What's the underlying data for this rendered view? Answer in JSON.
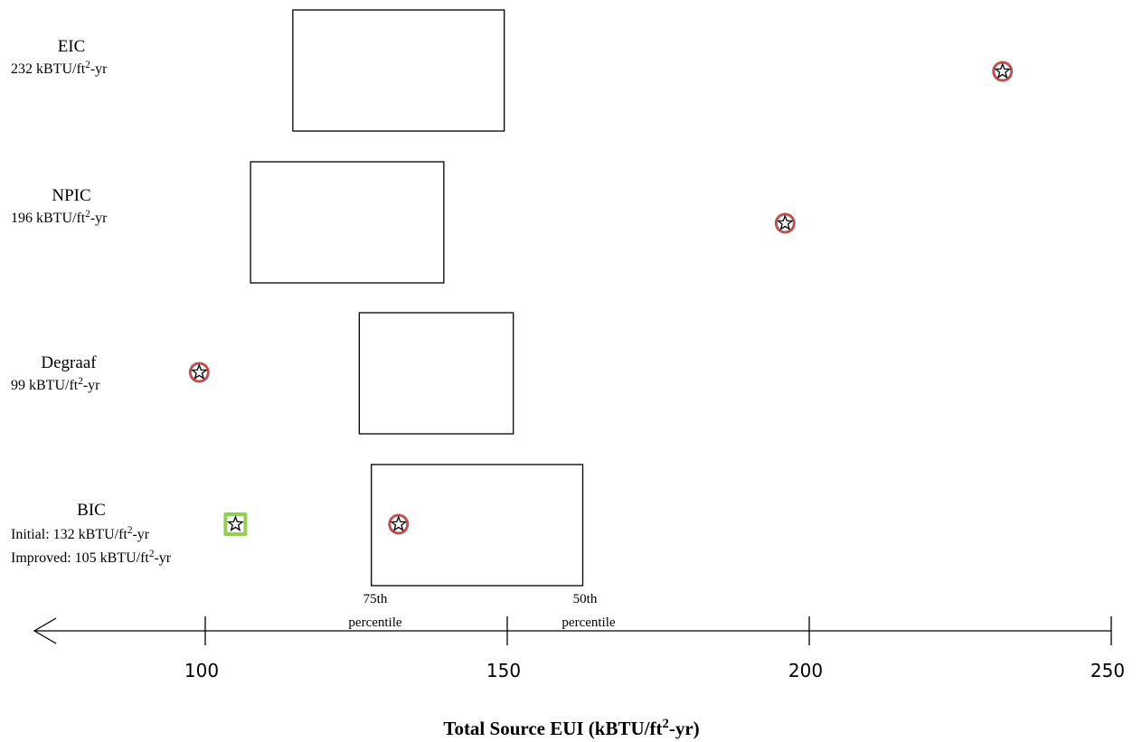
{
  "chart_data": {
    "type": "scatter",
    "xlabel": "Total Source EUI (kBTU/ft²-yr)",
    "xlim": [
      70,
      250
    ],
    "x_ticks": [
      100,
      150,
      200,
      250
    ],
    "axis_reversed_arrow": "left",
    "percentile_labels": {
      "p75": [
        "75th",
        "percentile"
      ],
      "p50": [
        "50th",
        "percentile"
      ]
    },
    "buildings": [
      {
        "name": "EIC",
        "eui_label": "232 kBTU/ft²-yr",
        "value": 232,
        "range": [
          114.5,
          149.5
        ],
        "marker": "red-circle-star"
      },
      {
        "name": "NPIC",
        "eui_label": "196 kBTU/ft²-yr",
        "value": 196,
        "range": [
          107.5,
          139.5
        ],
        "marker": "red-circle-star"
      },
      {
        "name": "Degraaf",
        "eui_label": "99 kBTU/ft²-yr",
        "value": 99,
        "range": [
          125.5,
          151
        ],
        "marker": "red-circle-star"
      },
      {
        "name": "BIC",
        "eui_lines": [
          "Initial:  132 kBTU/ft²-yr",
          "Improved:  105 kBTU/ft²-yr"
        ],
        "value": 132,
        "improved_value": 105,
        "range": [
          127.5,
          162.5
        ],
        "marker": "red-circle-star",
        "improved_marker": "green-square-star"
      }
    ],
    "colors": {
      "circle_ring": "#c0504d",
      "square": "#92d050",
      "box": "#000000",
      "axis": "#000000"
    }
  }
}
